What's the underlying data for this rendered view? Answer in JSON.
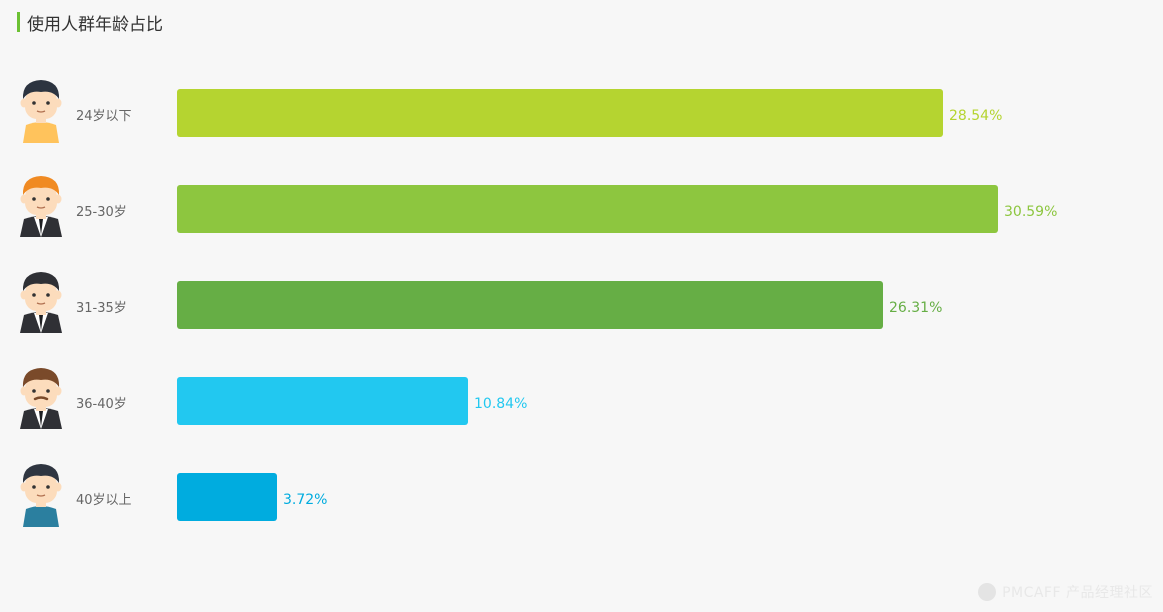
{
  "header": {
    "title": "使用人群年龄占比"
  },
  "watermark": {
    "text": "PMCAFF 产品经理社区"
  },
  "chart_data": {
    "type": "bar",
    "orientation": "horizontal",
    "title": "使用人群年龄占比",
    "categories": [
      "24岁以下",
      "25-30岁",
      "31-35岁",
      "36-40岁",
      "40岁以上"
    ],
    "values": [
      28.54,
      30.59,
      26.31,
      10.84,
      3.72
    ],
    "value_labels": [
      "28.54%",
      "30.59%",
      "26.31%",
      "10.84%",
      "3.72%"
    ],
    "xlim": [
      0,
      30.59
    ],
    "colors": [
      "#b5d430",
      "#8dc63f",
      "#66ae45",
      "#22c8f0",
      "#00acdf"
    ],
    "avatars": [
      {
        "name": "young-boy-avatar-icon",
        "hair": "#2c3440",
        "shirt": "#ffc35c",
        "suit": false
      },
      {
        "name": "ginger-man-avatar-icon",
        "hair": "#f08a22",
        "shirt": "#ffffff",
        "suit": true
      },
      {
        "name": "suit-man-avatar-icon",
        "hair": "#2f3035",
        "shirt": "#ffffff",
        "suit": true
      },
      {
        "name": "mustache-man-avatar-icon",
        "hair": "#7a4a2a",
        "shirt": "#ffffff",
        "suit": true
      },
      {
        "name": "older-man-avatar-icon",
        "hair": "#2f3540",
        "shirt": "#2b7f9f",
        "suit": false
      }
    ]
  }
}
